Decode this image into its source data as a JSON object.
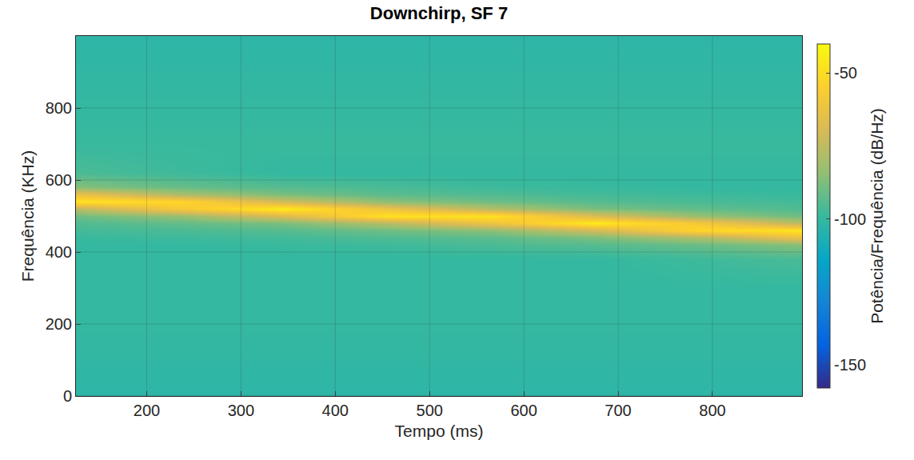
{
  "chart_data": {
    "type": "heatmap",
    "title": "Downchirp, SF 7",
    "x_label": "Tempo (ms)",
    "y_label": "Frequência (KHz)",
    "x": [
      125,
      235,
      345,
      455,
      565,
      675,
      785,
      895
    ],
    "y": [
      0,
      100,
      200,
      300,
      380,
      420,
      440,
      460,
      480,
      500,
      520,
      540,
      560,
      580,
      620,
      700,
      800,
      900,
      1000
    ],
    "z": [
      [
        -102,
        -102,
        -102,
        -102,
        -102,
        -102,
        -102,
        -102
      ],
      [
        -101,
        -101,
        -101,
        -101,
        -101,
        -101,
        -101,
        -101
      ],
      [
        -100,
        -100,
        -100,
        -100,
        -100,
        -100,
        -100,
        -100
      ],
      [
        -100,
        -100,
        -100,
        -100,
        -100,
        -100,
        -100,
        -100
      ],
      [
        -100,
        -100,
        -100,
        -100,
        -100,
        -100,
        -98,
        -96
      ],
      [
        -100,
        -100,
        -99,
        -98,
        -96,
        -94,
        -91,
        -86
      ],
      [
        -99,
        -98,
        -97,
        -95,
        -93,
        -88,
        -79,
        -63
      ],
      [
        -97,
        -96,
        -94,
        -90,
        -85,
        -71,
        -52,
        -47
      ],
      [
        -95,
        -92,
        -88,
        -77,
        -62,
        -45,
        -58,
        -76
      ],
      [
        -90,
        -83,
        -68,
        -48,
        -48,
        -68,
        -83,
        -90
      ],
      [
        -76,
        -58,
        -45,
        -62,
        -77,
        -88,
        -92,
        -95
      ],
      [
        -47,
        -52,
        -71,
        -85,
        -90,
        -94,
        -96,
        -97
      ],
      [
        -63,
        -79,
        -88,
        -93,
        -95,
        -97,
        -98,
        -99
      ],
      [
        -86,
        -91,
        -94,
        -96,
        -98,
        -99,
        -100,
        -100
      ],
      [
        -96,
        -98,
        -100,
        -100,
        -100,
        -100,
        -100,
        -100
      ],
      [
        -99,
        -99,
        -99,
        -99,
        -99,
        -99,
        -99,
        -99
      ],
      [
        -100,
        -100,
        -100,
        -100,
        -100,
        -100,
        -100,
        -100
      ],
      [
        -101,
        -101,
        -101,
        -101,
        -101,
        -101,
        -101,
        -101
      ],
      [
        -102,
        -102,
        -102,
        -102,
        -102,
        -102,
        -102,
        -102
      ]
    ],
    "xlim": [
      125,
      895
    ],
    "xticks": [
      200,
      300,
      400,
      500,
      600,
      700,
      800
    ],
    "ylim": [
      0,
      1000
    ],
    "yticks": [
      0,
      200,
      400,
      600,
      800
    ],
    "grid": true,
    "colorbar": {
      "title": "Potência/Frequência (dB/Hz)",
      "range": [
        -158,
        -40
      ],
      "ticks": [
        -150,
        -100,
        -50
      ]
    }
  }
}
